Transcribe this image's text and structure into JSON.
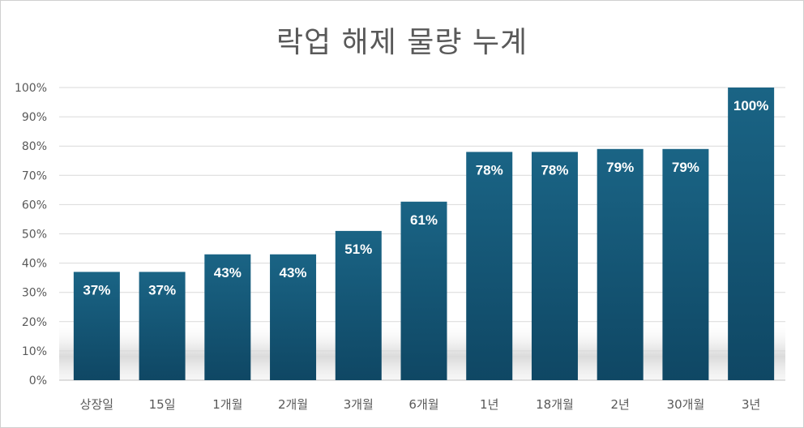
{
  "chart_data": {
    "type": "bar",
    "title": "락업 해제 물량 누계",
    "xlabel": "",
    "ylabel": "",
    "categories": [
      "상장일",
      "15일",
      "1개월",
      "2개월",
      "3개월",
      "6개월",
      "1년",
      "18개월",
      "2년",
      "30개월",
      "3년"
    ],
    "values": [
      37,
      37,
      43,
      43,
      51,
      61,
      78,
      78,
      79,
      79,
      100
    ],
    "data_labels": [
      "37%",
      "37%",
      "43%",
      "43%",
      "51%",
      "61%",
      "78%",
      "78%",
      "79%",
      "79%",
      "100%"
    ],
    "yticks": [
      "0%",
      "10%",
      "20%",
      "30%",
      "40%",
      "50%",
      "60%",
      "70%",
      "80%",
      "90%",
      "100%"
    ],
    "ylim": [
      0,
      100
    ],
    "grid": true,
    "legend": "none",
    "colors": {
      "bar_top": "#1a6485",
      "bar_bottom": "#0f4764",
      "grid": "#d9d9d9",
      "text": "#595959"
    }
  }
}
